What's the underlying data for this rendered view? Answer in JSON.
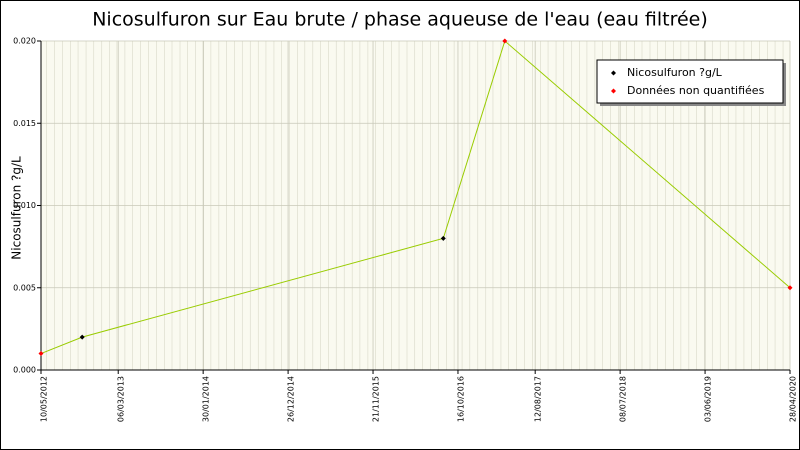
{
  "chart_data": {
    "type": "line",
    "title": "Nicosulfuron sur Eau brute / phase aqueuse de l'eau (eau filtrée)",
    "y_label": "Nicosulfuron ?g/L",
    "x": [
      "10/05/2012",
      "17/10/2012",
      "20/08/2016",
      "16/04/2017",
      "28/04/2020"
    ],
    "series": [
      {
        "name": "Nicosulfuron ?g/L",
        "color": "#000000",
        "values": [
          null,
          0.002,
          0.008,
          null,
          null
        ]
      },
      {
        "name": "Données non quantifiées",
        "color": "#ff0000",
        "values": [
          0.001,
          null,
          null,
          0.02,
          0.005
        ]
      }
    ],
    "line_color": "#99cc00",
    "xlim": [
      "10/05/2012",
      "28/04/2020"
    ],
    "xticks": [
      "10/05/2012",
      "06/03/2013",
      "30/01/2014",
      "26/12/2014",
      "21/11/2015",
      "16/10/2016",
      "12/08/2017",
      "08/07/2018",
      "03/06/2019",
      "28/04/2020"
    ],
    "ylim": [
      0,
      0.02
    ],
    "yticks": [
      {
        "value": 0,
        "label": "0.000"
      },
      {
        "value": 0.005,
        "label": "0.005"
      },
      {
        "value": 0.01,
        "label": "0.010"
      },
      {
        "value": 0.015,
        "label": "0.015"
      },
      {
        "value": 0.02,
        "label": "0.020"
      }
    ],
    "grid": true,
    "legend": "upper right"
  }
}
